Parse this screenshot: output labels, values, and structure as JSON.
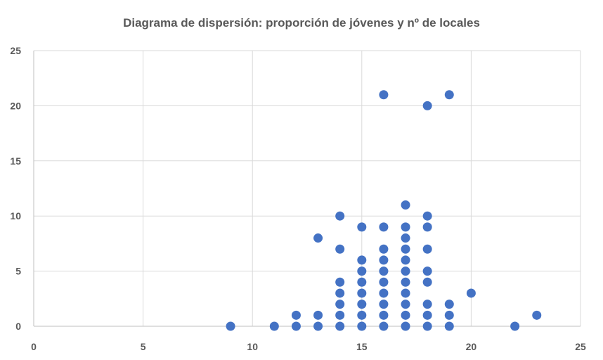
{
  "chart_data": {
    "type": "scatter",
    "title": "Diagrama de dispersión: proporción de jóvenes y nº de locales",
    "xlabel": "",
    "ylabel": "",
    "xlim": [
      0,
      25
    ],
    "ylim": [
      0,
      25
    ],
    "x_ticks": [
      0,
      5,
      10,
      15,
      20,
      25
    ],
    "y_ticks": [
      0,
      5,
      10,
      15,
      20,
      25
    ],
    "grid": true,
    "legend": "none",
    "marker_color": "#4472C4",
    "points": [
      [
        9,
        0
      ],
      [
        11,
        0
      ],
      [
        12,
        0
      ],
      [
        12,
        1
      ],
      [
        13,
        0
      ],
      [
        13,
        1
      ],
      [
        13,
        8
      ],
      [
        14,
        0
      ],
      [
        14,
        1
      ],
      [
        14,
        2
      ],
      [
        14,
        3
      ],
      [
        14,
        4
      ],
      [
        14,
        7
      ],
      [
        14,
        10
      ],
      [
        15,
        0
      ],
      [
        15,
        1
      ],
      [
        15,
        2
      ],
      [
        15,
        3
      ],
      [
        15,
        4
      ],
      [
        15,
        5
      ],
      [
        15,
        6
      ],
      [
        15,
        9
      ],
      [
        16,
        0
      ],
      [
        16,
        1
      ],
      [
        16,
        2
      ],
      [
        16,
        3
      ],
      [
        16,
        4
      ],
      [
        16,
        5
      ],
      [
        16,
        6
      ],
      [
        16,
        7
      ],
      [
        16,
        9
      ],
      [
        16,
        21
      ],
      [
        17,
        0
      ],
      [
        17,
        1
      ],
      [
        17,
        2
      ],
      [
        17,
        3
      ],
      [
        17,
        4
      ],
      [
        17,
        5
      ],
      [
        17,
        6
      ],
      [
        17,
        7
      ],
      [
        17,
        8
      ],
      [
        17,
        9
      ],
      [
        17,
        11
      ],
      [
        18,
        0
      ],
      [
        18,
        1
      ],
      [
        18,
        2
      ],
      [
        18,
        4
      ],
      [
        18,
        5
      ],
      [
        18,
        7
      ],
      [
        18,
        9
      ],
      [
        18,
        10
      ],
      [
        18,
        20
      ],
      [
        19,
        0
      ],
      [
        19,
        1
      ],
      [
        19,
        2
      ],
      [
        19,
        21
      ],
      [
        20,
        3
      ],
      [
        22,
        0
      ],
      [
        23,
        1
      ]
    ]
  }
}
